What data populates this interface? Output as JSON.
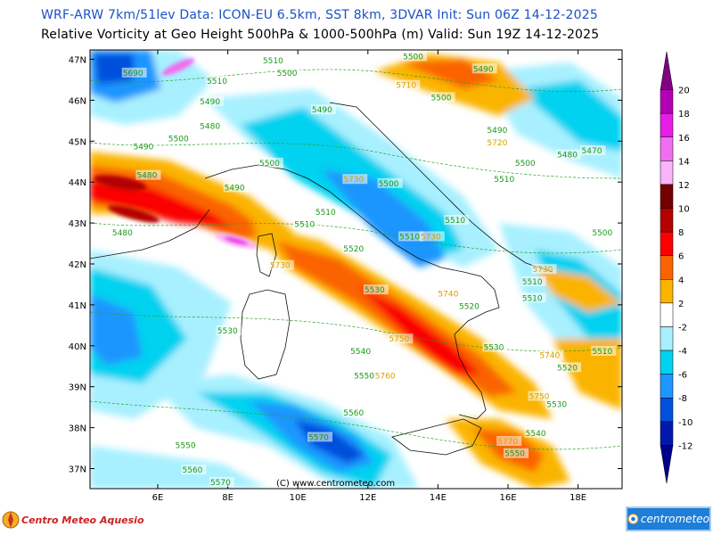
{
  "header": {
    "line1": "WRF-ARW 7km/51lev  Data: ICON-EU 6.5km, SST 8km, 3DVAR  Init: Sun 06Z 14-12-2025",
    "line2": "Relative Vorticity at Geo Height 500hPa & 1000-500hPa (m)  Valid: Sun 19Z 14-12-2025"
  },
  "map": {
    "lat_labels": [
      "47N",
      "46N",
      "45N",
      "44N",
      "43N",
      "42N",
      "41N",
      "40N",
      "39N",
      "38N",
      "37N"
    ],
    "lon_labels": [
      "6E",
      "8E",
      "10E",
      "12E",
      "14E",
      "16E",
      "18E"
    ],
    "copyright": "(C) www.centrometeo.com",
    "contour_labels": [
      {
        "text": "5690",
        "lon": 5.0,
        "lat": 46.6
      },
      {
        "text": "5510",
        "lon": 9.0,
        "lat": 46.9
      },
      {
        "text": "5500",
        "lon": 9.4,
        "lat": 46.6
      },
      {
        "text": "5500",
        "lon": 13.0,
        "lat": 47.0
      },
      {
        "text": "5490",
        "lon": 15.0,
        "lat": 46.7
      },
      {
        "text": "5510",
        "lon": 7.4,
        "lat": 46.4
      },
      {
        "text": "5490",
        "lon": 7.2,
        "lat": 45.9
      },
      {
        "text": "5490",
        "lon": 10.4,
        "lat": 45.7
      },
      {
        "text": "5500",
        "lon": 13.8,
        "lat": 46.0
      },
      {
        "text": "5710",
        "lon": 12.8,
        "lat": 46.3
      },
      {
        "text": "5480",
        "lon": 7.2,
        "lat": 45.3
      },
      {
        "text": "5490",
        "lon": 5.3,
        "lat": 44.8
      },
      {
        "text": "5500",
        "lon": 6.3,
        "lat": 45.0
      },
      {
        "text": "5490",
        "lon": 15.4,
        "lat": 45.2
      },
      {
        "text": "5720",
        "lon": 15.4,
        "lat": 44.9
      },
      {
        "text": "5480",
        "lon": 17.4,
        "lat": 44.6
      },
      {
        "text": "5470",
        "lon": 18.1,
        "lat": 44.7
      },
      {
        "text": "5500",
        "lon": 8.9,
        "lat": 44.4
      },
      {
        "text": "5500",
        "lon": 16.2,
        "lat": 44.4
      },
      {
        "text": "5480",
        "lon": 5.4,
        "lat": 44.1
      },
      {
        "text": "5490",
        "lon": 7.9,
        "lat": 43.8
      },
      {
        "text": "5730",
        "lon": 11.3,
        "lat": 44.0
      },
      {
        "text": "5500",
        "lon": 12.3,
        "lat": 43.9
      },
      {
        "text": "5510",
        "lon": 15.6,
        "lat": 44.0
      },
      {
        "text": "5510",
        "lon": 10.5,
        "lat": 43.2
      },
      {
        "text": "5510",
        "lon": 9.9,
        "lat": 42.9
      },
      {
        "text": "5510",
        "lon": 14.2,
        "lat": 43.0
      },
      {
        "text": "5480",
        "lon": 4.7,
        "lat": 42.7
      },
      {
        "text": "5500",
        "lon": 18.4,
        "lat": 42.7
      },
      {
        "text": "5510",
        "lon": 12.9,
        "lat": 42.6
      },
      {
        "text": "5730",
        "lon": 13.5,
        "lat": 42.6
      },
      {
        "text": "5520",
        "lon": 11.3,
        "lat": 42.3
      },
      {
        "text": "5730",
        "lon": 9.2,
        "lat": 41.9
      },
      {
        "text": "5730",
        "lon": 16.7,
        "lat": 41.8
      },
      {
        "text": "5510",
        "lon": 16.4,
        "lat": 41.5
      },
      {
        "text": "5530",
        "lon": 11.9,
        "lat": 41.3
      },
      {
        "text": "5740",
        "lon": 14.0,
        "lat": 41.2
      },
      {
        "text": "5510",
        "lon": 16.4,
        "lat": 41.1
      },
      {
        "text": "5520",
        "lon": 14.6,
        "lat": 40.9
      },
      {
        "text": "5530",
        "lon": 7.7,
        "lat": 40.3
      },
      {
        "text": "5750",
        "lon": 12.6,
        "lat": 40.1
      },
      {
        "text": "5530",
        "lon": 15.3,
        "lat": 39.9
      },
      {
        "text": "5540",
        "lon": 11.5,
        "lat": 39.8
      },
      {
        "text": "5740",
        "lon": 16.9,
        "lat": 39.7
      },
      {
        "text": "5510",
        "lon": 18.4,
        "lat": 39.8
      },
      {
        "text": "5520",
        "lon": 17.4,
        "lat": 39.4
      },
      {
        "text": "5550",
        "lon": 11.6,
        "lat": 39.2
      },
      {
        "text": "5760",
        "lon": 12.2,
        "lat": 39.2
      },
      {
        "text": "5750",
        "lon": 16.6,
        "lat": 38.7
      },
      {
        "text": "5530",
        "lon": 17.1,
        "lat": 38.5
      },
      {
        "text": "5560",
        "lon": 11.3,
        "lat": 38.3
      },
      {
        "text": "5540",
        "lon": 16.5,
        "lat": 37.8
      },
      {
        "text": "5570",
        "lon": 10.3,
        "lat": 37.7
      },
      {
        "text": "5770",
        "lon": 15.7,
        "lat": 37.6
      },
      {
        "text": "5550",
        "lon": 6.5,
        "lat": 37.5
      },
      {
        "text": "5550",
        "lon": 15.9,
        "lat": 37.3
      },
      {
        "text": "5560",
        "lon": 6.7,
        "lat": 36.9
      },
      {
        "text": "5570",
        "lon": 7.5,
        "lat": 36.5
      }
    ]
  },
  "colorbar": {
    "labels": [
      "20",
      "18",
      "16",
      "14",
      "12",
      "10",
      "8",
      "6",
      "4",
      "2",
      "-2",
      "-4",
      "-6",
      "-8",
      "-10",
      "-12"
    ],
    "colors": [
      "#820082",
      "#b400b4",
      "#e61ee6",
      "#f06ef0",
      "#fab4fa",
      "#730000",
      "#b40000",
      "#fa0000",
      "#fa6400",
      "#fab400",
      "#ffffff",
      "#a8f0ff",
      "#00d2f0",
      "#1e96ff",
      "#0050dc",
      "#0019aa",
      "#00008c"
    ]
  },
  "footer": {
    "left_brand": "Centro Meteo Aquesio",
    "right_brand": "centrometeo"
  }
}
